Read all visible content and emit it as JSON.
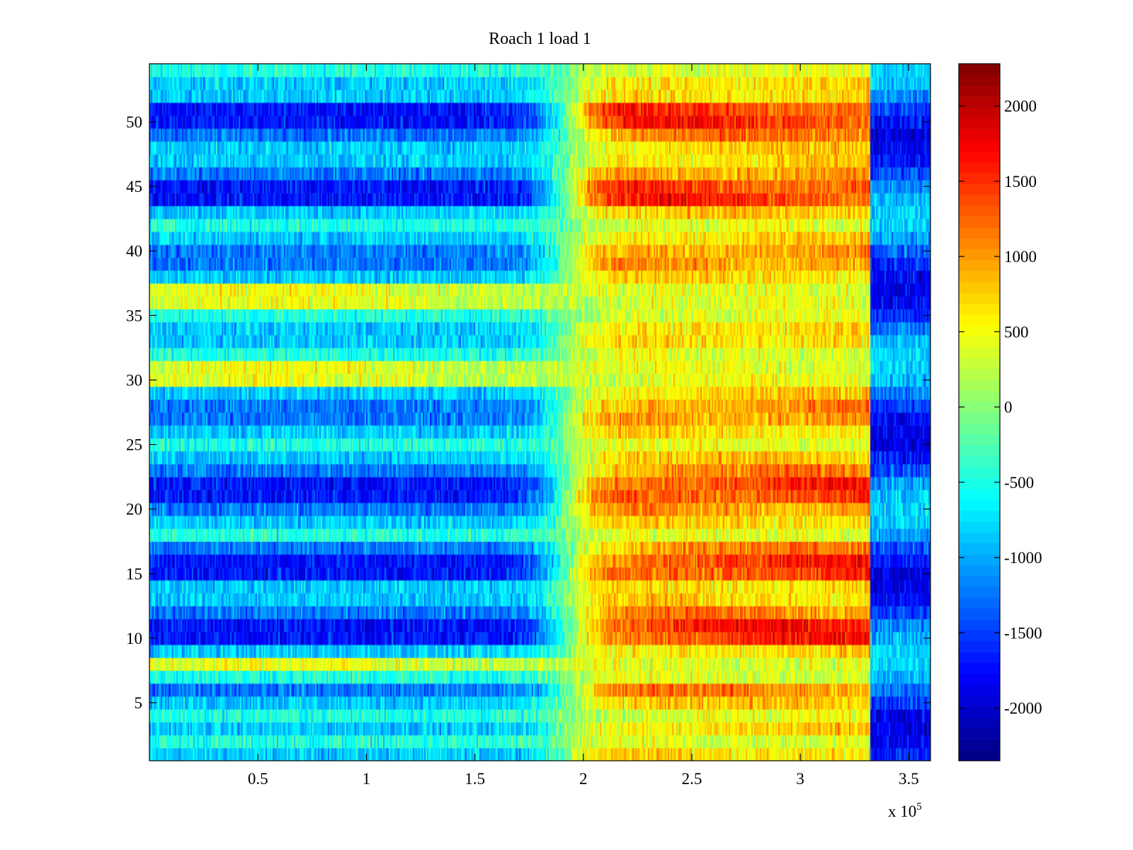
{
  "chart_data": {
    "type": "heatmap",
    "title": "Roach 1 load 1",
    "xlabel": "",
    "ylabel": "",
    "x_range": [
      0,
      360000
    ],
    "y_range": [
      0.5,
      54.5
    ],
    "rows": 54,
    "x_ticks": [
      50000,
      100000,
      150000,
      200000,
      250000,
      300000,
      350000
    ],
    "x_tick_labels": [
      "0.5",
      "1",
      "1.5",
      "2",
      "2.5",
      "3",
      "3.5"
    ],
    "x_multiplier": {
      "base": "x 10",
      "exponent": "5"
    },
    "y_ticks": [
      5,
      10,
      15,
      20,
      25,
      30,
      35,
      40,
      45,
      50
    ],
    "y_tick_labels": [
      "5",
      "10",
      "15",
      "20",
      "25",
      "30",
      "35",
      "40",
      "45",
      "50"
    ],
    "colorbar": {
      "colormap": "jet",
      "range": [
        -2350,
        2280
      ],
      "ticks": [
        -2000,
        -1500,
        -1000,
        -500,
        0,
        500,
        1000,
        1500,
        2000
      ],
      "tick_labels": [
        "-2000",
        "-1500",
        "-1000",
        "-500",
        "0",
        "500",
        "1000",
        "1500",
        "2000"
      ]
    },
    "structure": {
      "row_extreme_profile": {
        "strong": [
          10,
          11,
          15,
          16,
          21,
          22,
          44,
          45,
          50,
          51
        ],
        "moderate": [
          6,
          12,
          17,
          20,
          23,
          27,
          28,
          39,
          40,
          46,
          49
        ],
        "mild": [
          1,
          3,
          5,
          9,
          13,
          14,
          19,
          24,
          26,
          29,
          33,
          34,
          38,
          41,
          43,
          47,
          48,
          52,
          53
        ],
        "positive_early": [
          8,
          30,
          31,
          36,
          37
        ]
      },
      "left_value_strong": -1700,
      "right_value_strong": 1700,
      "transition_x": [
        170000,
        215000
      ],
      "drop_x": 332000,
      "tail_value": -1900
    }
  }
}
